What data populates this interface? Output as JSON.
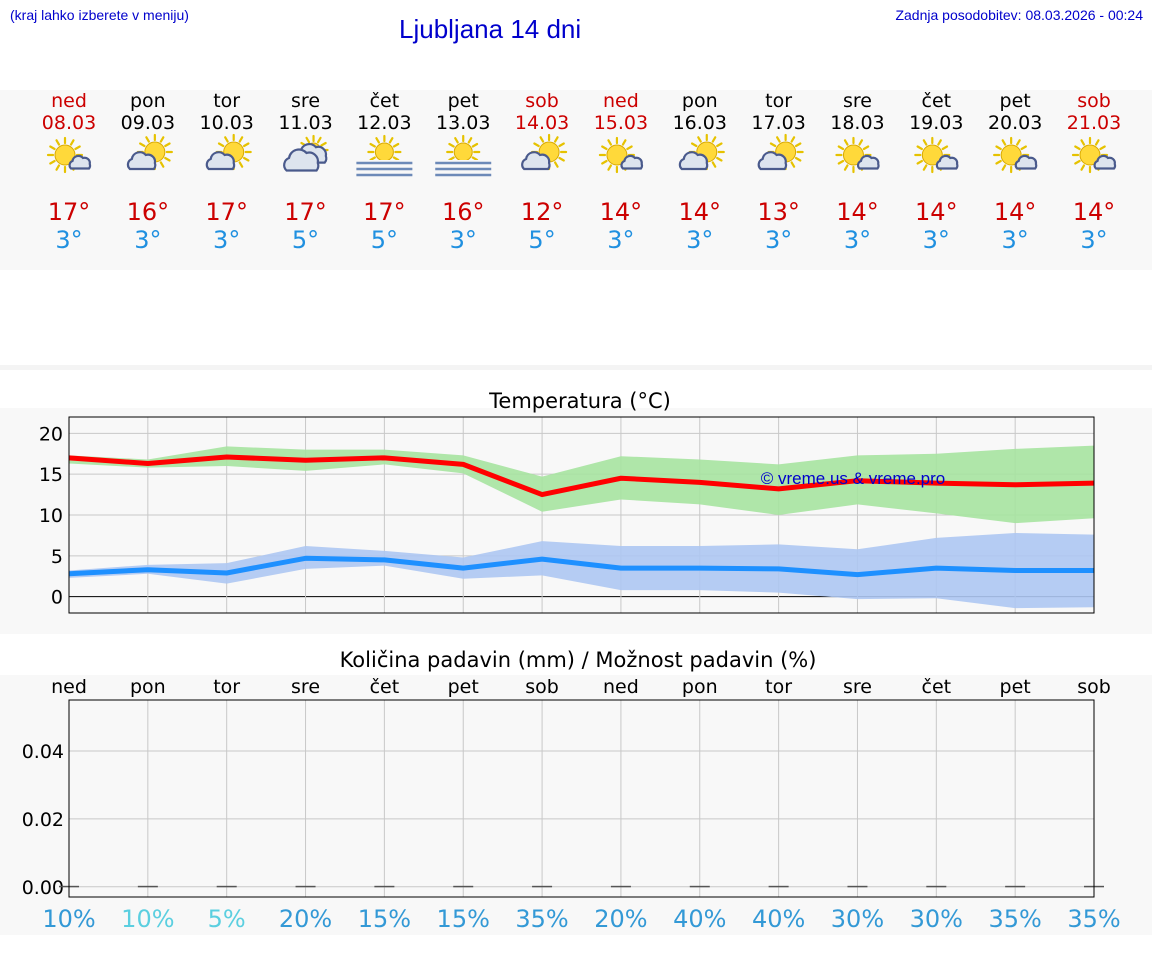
{
  "header": {
    "hint": "(kraj lahko izberete v meniju)",
    "title": "Ljubljana 14 dni",
    "updated": "Zadnja posodobitev: 08.03.2026 - 00:24"
  },
  "colors": {
    "max_temp": "#cc0000",
    "min_temp": "#2090e0",
    "sunday_label": "#cc0000",
    "max_line": "#ff0000",
    "max_band": "#a6e3a0",
    "min_line": "#1e90ff",
    "min_band": "#adc6f2",
    "watermark": "#0000cc"
  },
  "days": [
    {
      "day": "ned",
      "date": "08.03",
      "icon": "sun-cloud-icon",
      "max": "17°",
      "min": "3°"
    },
    {
      "day": "pon",
      "date": "09.03",
      "icon": "sun-behind-cloud-icon",
      "max": "16°",
      "min": "3°"
    },
    {
      "day": "tor",
      "date": "10.03",
      "icon": "sun-behind-cloud-icon",
      "max": "17°",
      "min": "3°"
    },
    {
      "day": "sre",
      "date": "11.03",
      "icon": "cloudy-sun-icon",
      "max": "17°",
      "min": "5°"
    },
    {
      "day": "čet",
      "date": "12.03",
      "icon": "sun-fog-icon",
      "max": "17°",
      "min": "5°"
    },
    {
      "day": "pet",
      "date": "13.03",
      "icon": "sun-fog-icon",
      "max": "16°",
      "min": "3°"
    },
    {
      "day": "sob",
      "date": "14.03",
      "icon": "sun-behind-cloud-icon",
      "max": "12°",
      "min": "5°"
    },
    {
      "day": "ned",
      "date": "15.03",
      "icon": "sun-cloud-icon",
      "max": "14°",
      "min": "3°"
    },
    {
      "day": "pon",
      "date": "16.03",
      "icon": "sun-behind-cloud-icon",
      "max": "14°",
      "min": "3°"
    },
    {
      "day": "tor",
      "date": "17.03",
      "icon": "sun-behind-cloud-icon",
      "max": "13°",
      "min": "3°"
    },
    {
      "day": "sre",
      "date": "18.03",
      "icon": "sun-cloud-icon",
      "max": "14°",
      "min": "3°"
    },
    {
      "day": "čet",
      "date": "19.03",
      "icon": "sun-cloud-icon",
      "max": "14°",
      "min": "3°"
    },
    {
      "day": "pet",
      "date": "20.03",
      "icon": "sun-cloud-icon",
      "max": "14°",
      "min": "3°"
    },
    {
      "day": "sob",
      "date": "21.03",
      "icon": "sun-cloud-icon",
      "max": "14°",
      "min": "3°"
    }
  ],
  "chart_data": [
    {
      "type": "line",
      "title": "Temperatura (°C)",
      "watermark": "© vreme.us & vreme.pro",
      "ylim": [
        -2,
        22
      ],
      "yticks": [
        0,
        5,
        10,
        15,
        20
      ],
      "grid": true,
      "series": [
        {
          "values": [
            17,
            16.3,
            17.1,
            16.7,
            17,
            16.2,
            12.5,
            14.5,
            14,
            13.2,
            14.2,
            13.9,
            13.7,
            13.9
          ],
          "band_upper": [
            17.3,
            16.8,
            18.4,
            18,
            18,
            17.3,
            14.7,
            17.2,
            16.8,
            16.2,
            17.3,
            17.5,
            18.1,
            18.5
          ],
          "band_lower": [
            16.3,
            15.8,
            16,
            15.4,
            16.2,
            15.1,
            10.4,
            11.9,
            11.3,
            10,
            11.3,
            10.2,
            9,
            9.6
          ]
        },
        {
          "values": [
            2.8,
            3.3,
            2.9,
            4.7,
            4.5,
            3.5,
            4.6,
            3.5,
            3.5,
            3.4,
            2.7,
            3.5,
            3.2,
            3.2
          ],
          "band_upper": [
            3.2,
            3.9,
            4.1,
            6.2,
            5.6,
            4.8,
            6.8,
            6.2,
            6.2,
            6.4,
            5.8,
            7.2,
            7.8,
            7.6
          ],
          "band_lower": [
            2.3,
            2.8,
            1.6,
            3.4,
            3.8,
            2.2,
            2.6,
            0.8,
            0.8,
            0.5,
            -0.3,
            -0.2,
            -1.4,
            -1.3
          ]
        }
      ]
    },
    {
      "type": "bar",
      "title": "Količina padavin (mm) / Možnost padavin (%)",
      "categories": [
        "ned",
        "pon",
        "tor",
        "sre",
        "čet",
        "pet",
        "sob",
        "ned",
        "pon",
        "tor",
        "sre",
        "čet",
        "pet",
        "sob"
      ],
      "values": [
        0,
        0,
        0,
        0,
        0,
        0,
        0,
        0,
        0,
        0,
        0,
        0,
        0,
        0
      ],
      "ylim": [
        -0.003,
        0.055
      ],
      "yticks": [
        "0.00",
        "0.02",
        "0.04"
      ],
      "probability": [
        "10%",
        "10%",
        "5%",
        "20%",
        "15%",
        "15%",
        "35%",
        "20%",
        "40%",
        "40%",
        "30%",
        "30%",
        "35%",
        "35%"
      ],
      "probability_colors": [
        "#3399d6",
        "#5bcfe0",
        "#5bcfe0",
        "#3399d6",
        "#3399d6",
        "#3399d6",
        "#3399d6",
        "#3399d6",
        "#3399d6",
        "#3399d6",
        "#3399d6",
        "#3399d6",
        "#3399d6",
        "#3399d6"
      ]
    }
  ]
}
